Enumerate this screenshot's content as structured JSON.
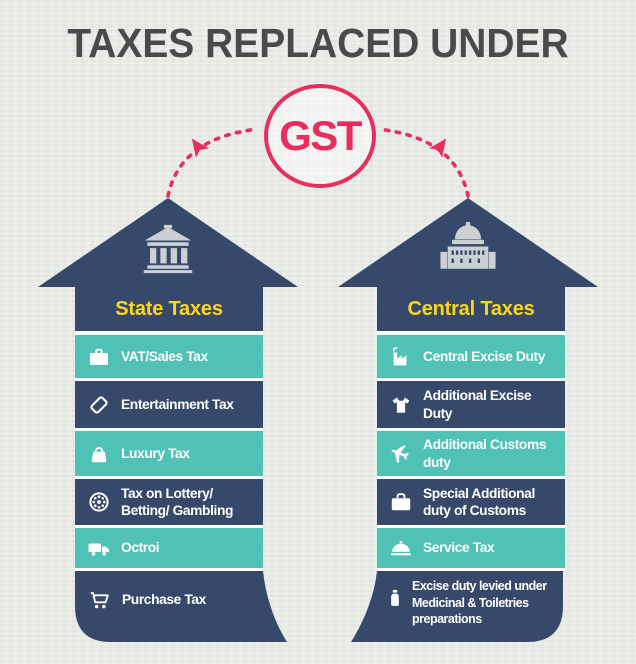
{
  "title": "TAXES REPLACED UNDER",
  "gst": {
    "label": "GST"
  },
  "colors": {
    "background": "#e9ebe7",
    "navy": "#37496a",
    "teal": "#4fc2b5",
    "yellow": "#f8d818",
    "pink": "#eb2d5d",
    "title_text": "#4a4a4c",
    "building_icon_gray": "#cbd0d3",
    "row_text": "#ffffff"
  },
  "left_arrow": {
    "header": "State Taxes",
    "building_icon": "bank-icon",
    "items": [
      {
        "icon": "briefcase-icon",
        "label": "VAT/Sales Tax"
      },
      {
        "icon": "ticket-icon",
        "label": "Entertainment Tax"
      },
      {
        "icon": "handbag-icon",
        "label": "Luxury Tax"
      },
      {
        "icon": "lottery-wheel-icon",
        "label": "Tax on Lottery/ Betting/ Gambling"
      },
      {
        "icon": "truck-icon",
        "label": "Octroi"
      },
      {
        "icon": "shopping-cart-icon",
        "label": "Purchase Tax"
      }
    ]
  },
  "right_arrow": {
    "header": "Central Taxes",
    "building_icon": "capitol-icon",
    "items": [
      {
        "icon": "factory-icon",
        "label": "Central Excise Duty"
      },
      {
        "icon": "tshirt-icon",
        "label": "Additional Excise Duty"
      },
      {
        "icon": "airplane-icon",
        "label": "Additional Customs duty"
      },
      {
        "icon": "suitcase-icon",
        "label": "Special Additional duty of Customs"
      },
      {
        "icon": "cloche-icon",
        "label": "Service Tax"
      },
      {
        "icon": "medicine-bottle-icon",
        "label": "Excise duty levied under Medicinal & Toiletries preparations"
      }
    ]
  }
}
